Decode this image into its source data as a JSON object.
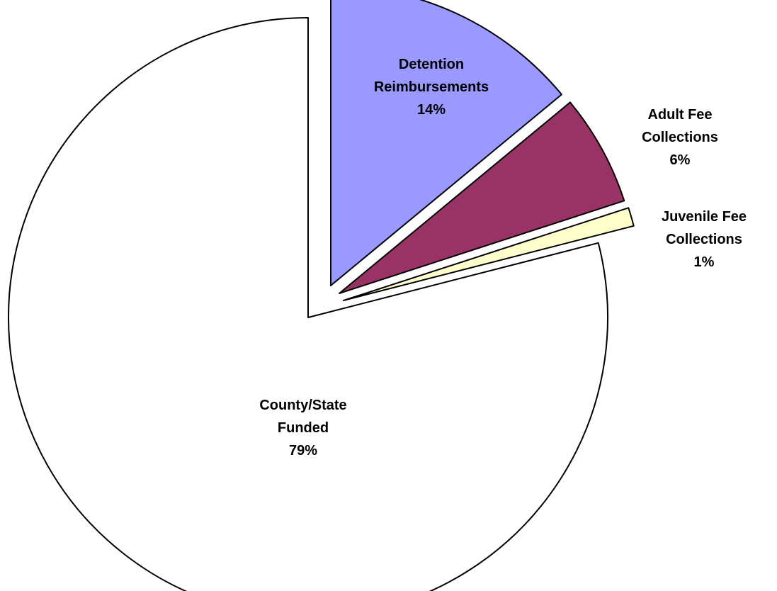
{
  "chart_data": {
    "type": "pie",
    "title": "",
    "slices": [
      {
        "name": "Detention Reimbursements",
        "label_lines": [
          "Detention",
          "Reimbursements",
          "14%"
        ],
        "percent": 14,
        "color": "#9999FF",
        "exploded": true
      },
      {
        "name": "Adult Fee Collections",
        "label_lines": [
          "Adult Fee",
          "Collections",
          "6%"
        ],
        "percent": 6,
        "color": "#993366",
        "exploded": true
      },
      {
        "name": "Juvenile Fee Collections",
        "label_lines": [
          "Juvenile Fee",
          "Collections",
          "1%"
        ],
        "percent": 1,
        "color": "#FFFFCC",
        "exploded": true
      },
      {
        "name": "County/State Funded",
        "label_lines": [
          "County/State",
          "Funded",
          "79%"
        ],
        "percent": 79,
        "color": "#FFFFFF",
        "exploded": true
      }
    ],
    "legend": "none",
    "data_labels": "category name and percentage"
  }
}
